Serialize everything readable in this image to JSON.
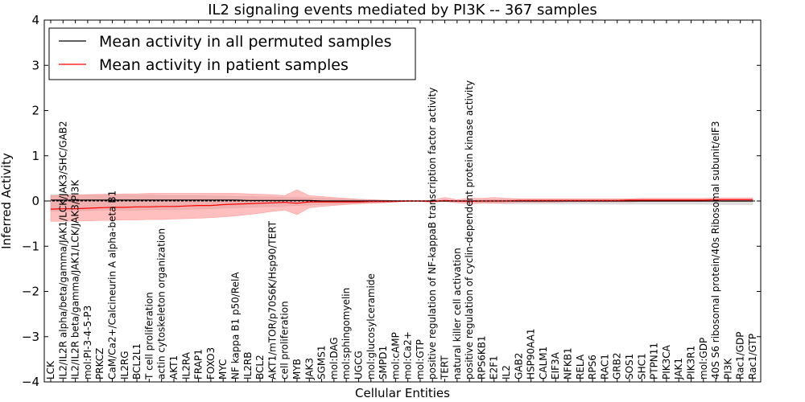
{
  "chart_data": {
    "type": "line",
    "title": "IL2 signaling events mediated by PI3K -- 367 samples",
    "xlabel": "Cellular Entities",
    "ylabel": "Inferred Activity",
    "ylim": [
      -4,
      4
    ],
    "yticks": [
      -4,
      -3,
      -2,
      -1,
      0,
      1,
      2,
      3,
      4
    ],
    "ytick_labels": [
      "−4",
      "−3",
      "−2",
      "−1",
      "0",
      "1",
      "2",
      "3",
      "4"
    ],
    "grid": false,
    "legend_position": "top-left",
    "categories": [
      "LCK",
      "IL2/IL2R alpha/beta/gamma/JAK1/LCK/JAK3/SHC/GAB2",
      "IL2/IL2R beta/gamma/JAK1/LCK/JAK3/PI3K",
      "mol:PI-3-4-5-P3",
      "PRKCZ",
      "CaM/Ca2+/Calcineurin A alpha-beta B1",
      "IL2RG",
      "BCL2L1",
      "T cell proliferation",
      "actin cytoskeleton organization",
      "AKT1",
      "IL2RA",
      "FRAP1",
      "FOXO3",
      "MYC",
      "NF kappa B1 p50/RelA",
      "IL2RB",
      "BCL2",
      "AKT1/mTOR/p70S6K/Hsp90/TERT",
      "cell proliferation",
      "MYB",
      "JAK3",
      "SGMS1",
      "mol:DAG",
      "mol:sphingomyelin",
      "UGCG",
      "mol:glucosylceramide",
      "SMPD1",
      "mol:cAMP",
      "mol:Ca2+",
      "mol:GTP",
      "positive regulation of NF-kappaB transcription factor activity",
      "TERT",
      "natural killer cell activation",
      "positive regulation of cyclin-dependent protein kinase activity",
      "RPS6KB1",
      "E2F1",
      "IL2",
      "GAB2",
      "HSP90AA1",
      "CALM1",
      "EIF3A",
      "NFKB1",
      "RELA",
      "RPS6",
      "RAC1",
      "GRB2",
      "SOS1",
      "SHC1",
      "PTPN11",
      "PIK3CA",
      "JAK1",
      "PIK3R1",
      "mol:GDP",
      "40S S6 ribosomal protein/40s Ribosomal subunit/eIF3",
      "PI3K",
      "Rac1/GDP",
      "Rac1/GTP"
    ],
    "series": [
      {
        "name": "Mean activity in all permuted samples",
        "color": "#000000",
        "band_color": "#bbbbbb",
        "values": [
          0.02,
          0.02,
          0.02,
          0.02,
          0.02,
          0.02,
          0.02,
          0.02,
          0.02,
          0.02,
          0.02,
          0.02,
          0.02,
          0.02,
          0.02,
          0.02,
          0.01,
          0.01,
          0.01,
          0.01,
          0.01,
          0.01,
          0.0,
          0.0,
          0.0,
          0.0,
          0.0,
          0.0,
          0.0,
          0.0,
          0.0,
          0.0,
          0.0,
          0.0,
          0.0,
          0.0,
          0.0,
          0.0,
          0.0,
          0.0,
          0.0,
          0.0,
          0.0,
          0.0,
          0.0,
          0.0,
          0.0,
          0.0,
          0.0,
          0.0,
          0.0,
          0.0,
          0.0,
          0.0,
          0.0,
          0.0,
          0.0,
          0.0
        ],
        "lower": [
          -0.22,
          -0.22,
          -0.21,
          -0.21,
          -0.2,
          -0.2,
          -0.2,
          -0.2,
          -0.19,
          -0.19,
          -0.19,
          -0.18,
          -0.18,
          -0.17,
          -0.16,
          -0.15,
          -0.14,
          -0.13,
          -0.12,
          -0.11,
          -0.1,
          -0.09,
          -0.08,
          -0.07,
          -0.06,
          -0.05,
          -0.04,
          -0.03,
          -0.02,
          -0.01,
          0.0,
          0.0,
          -0.01,
          -0.01,
          -0.02,
          -0.03,
          -0.05,
          -0.06,
          -0.06,
          -0.06,
          -0.06,
          -0.06,
          -0.06,
          -0.06,
          -0.06,
          -0.07,
          -0.07,
          -0.07,
          -0.07,
          -0.07,
          -0.07,
          -0.07,
          -0.07,
          -0.07,
          -0.08,
          -0.08,
          -0.08,
          -0.08
        ],
        "upper": [
          0.14,
          0.14,
          0.14,
          0.14,
          0.13,
          0.13,
          0.13,
          0.13,
          0.13,
          0.12,
          0.12,
          0.12,
          0.12,
          0.11,
          0.11,
          0.1,
          0.1,
          0.09,
          0.09,
          0.08,
          0.08,
          0.07,
          0.06,
          0.05,
          0.04,
          0.04,
          0.03,
          0.02,
          0.01,
          0.0,
          0.0,
          0.0,
          0.01,
          0.01,
          0.02,
          0.03,
          0.03,
          0.04,
          0.04,
          0.04,
          0.04,
          0.04,
          0.04,
          0.04,
          0.04,
          0.04,
          0.04,
          0.04,
          0.04,
          0.04,
          0.04,
          0.04,
          0.04,
          0.04,
          0.04,
          0.04,
          0.04,
          0.04
        ]
      },
      {
        "name": "Mean activity in patient samples",
        "color": "#ff0000",
        "band_color": "#ff8080",
        "values": [
          -0.18,
          -0.17,
          -0.17,
          -0.16,
          -0.15,
          -0.14,
          -0.14,
          -0.13,
          -0.13,
          -0.12,
          -0.12,
          -0.11,
          -0.1,
          -0.1,
          -0.08,
          -0.07,
          -0.06,
          -0.05,
          -0.04,
          -0.03,
          -0.05,
          -0.02,
          -0.02,
          -0.02,
          -0.02,
          -0.02,
          -0.01,
          -0.01,
          -0.01,
          0.0,
          0.0,
          -0.01,
          0.01,
          0.0,
          -0.01,
          0.0,
          0.0,
          0.0,
          0.01,
          0.01,
          0.01,
          0.01,
          0.01,
          0.01,
          0.01,
          0.01,
          0.01,
          0.02,
          0.02,
          0.02,
          0.02,
          0.02,
          0.02,
          0.02,
          0.03,
          0.03,
          0.03,
          0.03
        ],
        "lower": [
          -0.45,
          -0.45,
          -0.44,
          -0.44,
          -0.43,
          -0.43,
          -0.42,
          -0.42,
          -0.41,
          -0.41,
          -0.4,
          -0.39,
          -0.38,
          -0.37,
          -0.35,
          -0.33,
          -0.3,
          -0.27,
          -0.23,
          -0.2,
          -0.3,
          -0.15,
          -0.12,
          -0.1,
          -0.08,
          -0.06,
          -0.05,
          -0.04,
          -0.02,
          -0.01,
          -0.01,
          -0.03,
          -0.01,
          -0.04,
          -0.06,
          -0.05,
          -0.05,
          -0.04,
          -0.03,
          -0.03,
          -0.03,
          -0.03,
          -0.02,
          -0.02,
          -0.02,
          -0.02,
          -0.02,
          -0.02,
          -0.01,
          -0.01,
          -0.01,
          -0.01,
          -0.01,
          -0.01,
          -0.01,
          -0.01,
          -0.01,
          -0.01
        ],
        "upper": [
          0.12,
          0.13,
          0.13,
          0.14,
          0.15,
          0.15,
          0.16,
          0.16,
          0.17,
          0.17,
          0.17,
          0.17,
          0.17,
          0.17,
          0.17,
          0.17,
          0.16,
          0.15,
          0.14,
          0.12,
          0.25,
          0.12,
          0.1,
          0.08,
          0.06,
          0.04,
          0.03,
          0.02,
          0.01,
          0.01,
          0.01,
          0.02,
          0.08,
          0.03,
          0.06,
          0.06,
          0.08,
          0.06,
          0.05,
          0.05,
          0.05,
          0.05,
          0.05,
          0.05,
          0.05,
          0.05,
          0.05,
          0.05,
          0.06,
          0.06,
          0.06,
          0.06,
          0.06,
          0.06,
          0.07,
          0.07,
          0.07,
          0.07
        ]
      }
    ]
  }
}
